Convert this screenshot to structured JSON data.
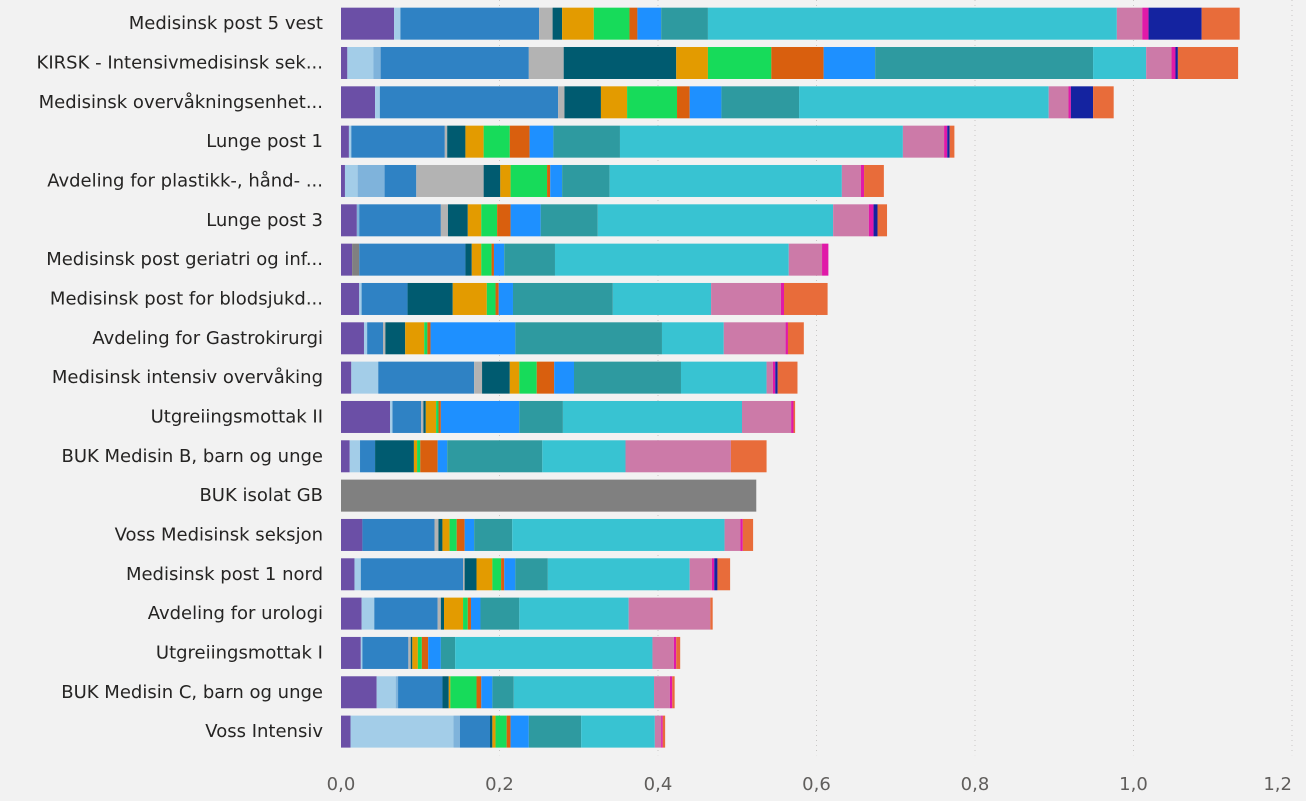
{
  "chart_data": {
    "type": "bar",
    "orientation": "horizontal",
    "stacked": true,
    "xlim": [
      0,
      1.2
    ],
    "x_ticks": [
      "0,0",
      "0,2",
      "0,4",
      "0,6",
      "0,8",
      "1,0",
      "1,2"
    ],
    "grid": "vertical dotted",
    "categories": [
      "Medisinsk post 5 vest",
      "KIRSK - Intensivmedisinsk sek...",
      "Medisinsk overvåkningsenhet...",
      "Lunge post 1",
      "Avdeling for plastikk-, hånd- ...",
      "Lunge post 3",
      "Medisinsk post geriatri og inf...",
      "Medisinsk post for blodsjukd...",
      "Avdeling for Gastrokirurgi",
      "Medisinsk intensiv overvåking",
      "Utgreiingsmottak II",
      "BUK Medisin B, barn og unge",
      "BUK isolat GB",
      "Voss Medisinsk seksjon",
      "Medisinsk post 1 nord",
      "Avdeling for urologi",
      "Utgreiingsmottak I",
      "BUK Medisin C, barn og unge",
      "Voss Intensiv"
    ],
    "series": [
      {
        "color": "#6b4fa6",
        "values": [
          0.067,
          0.008,
          0.043,
          0.01,
          0.005,
          0.02,
          0.014,
          0.023,
          0.029,
          0.013,
          0.062,
          0.011,
          0,
          0.027,
          0.017,
          0.026,
          0.025,
          0.045,
          0.012
        ]
      },
      {
        "color": "#808080",
        "values": [
          0,
          0,
          0,
          0,
          0,
          0,
          0.009,
          0,
          0,
          0,
          0,
          0,
          0.524,
          0,
          0,
          0,
          0,
          0,
          0
        ]
      },
      {
        "color": "#a3cde8",
        "values": [
          0.008,
          0.033,
          0.006,
          0.003,
          0.016,
          0,
          0,
          0.003,
          0.004,
          0.034,
          0.003,
          0.013,
          0,
          0,
          0.008,
          0.016,
          0.002,
          0.024,
          0.13
        ]
      },
      {
        "color": "#7fb3db",
        "values": [
          0,
          0.009,
          0,
          0,
          0.034,
          0.003,
          0,
          0,
          0,
          0,
          0,
          0,
          0,
          0,
          0,
          0,
          0,
          0.003,
          0.008
        ]
      },
      {
        "color": "#2f82c4",
        "values": [
          0.175,
          0.187,
          0.225,
          0.118,
          0.04,
          0.103,
          0.134,
          0.058,
          0.02,
          0.121,
          0.036,
          0.019,
          0,
          0.091,
          0.129,
          0.08,
          0.058,
          0.056,
          0.038
        ]
      },
      {
        "color": "#b3b3b3",
        "values": [
          0.017,
          0.044,
          0.008,
          0.003,
          0.085,
          0.009,
          0,
          0,
          0.003,
          0.01,
          0.003,
          0,
          0,
          0.005,
          0.002,
          0.004,
          0.003,
          0,
          0
        ]
      },
      {
        "color": "#005b70",
        "values": [
          0.012,
          0.142,
          0.046,
          0.023,
          0.021,
          0.025,
          0.008,
          0.057,
          0.025,
          0.035,
          0.003,
          0.049,
          0,
          0.005,
          0.015,
          0.004,
          0.002,
          0.008,
          0.003
        ]
      },
      {
        "color": "#e39b00",
        "values": [
          0.04,
          0.04,
          0.033,
          0.023,
          0.013,
          0.017,
          0.012,
          0.043,
          0.024,
          0.012,
          0.013,
          0.004,
          0,
          0.009,
          0.02,
          0.024,
          0.007,
          0.002,
          0.004
        ]
      },
      {
        "color": "#17db5a",
        "values": [
          0.045,
          0.08,
          0.063,
          0.033,
          0.046,
          0.02,
          0.013,
          0.011,
          0.004,
          0.022,
          0.003,
          0.004,
          0,
          0.009,
          0.011,
          0.006,
          0.005,
          0.033,
          0.014
        ]
      },
      {
        "color": "#d95f0e",
        "values": [
          0.01,
          0.066,
          0.016,
          0.025,
          0.004,
          0.017,
          0.003,
          0.004,
          0.004,
          0.022,
          0.003,
          0.022,
          0,
          0.01,
          0.004,
          0.004,
          0.008,
          0.006,
          0.005
        ]
      },
      {
        "color": "#1e90ff",
        "values": [
          0.03,
          0.065,
          0.04,
          0.03,
          0.015,
          0.038,
          0.013,
          0.018,
          0.107,
          0.025,
          0.099,
          0.012,
          0,
          0.012,
          0.014,
          0.012,
          0.016,
          0.014,
          0.023
        ]
      },
      {
        "color": "#2e9aa0",
        "values": [
          0.059,
          0.275,
          0.098,
          0.084,
          0.06,
          0.072,
          0.064,
          0.126,
          0.185,
          0.135,
          0.055,
          0.12,
          0,
          0.048,
          0.041,
          0.049,
          0.018,
          0.027,
          0.066
        ]
      },
      {
        "color": "#38c3d2",
        "values": [
          0.516,
          0.067,
          0.315,
          0.357,
          0.293,
          0.297,
          0.295,
          0.124,
          0.078,
          0.108,
          0.226,
          0.105,
          0,
          0.268,
          0.179,
          0.138,
          0.249,
          0.177,
          0.093
        ]
      },
      {
        "color": "#cc7aa8",
        "values": [
          0.032,
          0.032,
          0.025,
          0.052,
          0.024,
          0.045,
          0.042,
          0.088,
          0.078,
          0.008,
          0.062,
          0.133,
          0,
          0.02,
          0.028,
          0.103,
          0.027,
          0.02,
          0.008
        ]
      },
      {
        "color": "#e01aa8",
        "values": [
          0.008,
          0.005,
          0.003,
          0.004,
          0.004,
          0.006,
          0.008,
          0.004,
          0.003,
          0.003,
          0.003,
          0,
          0,
          0.003,
          0.003,
          0,
          0.003,
          0.003,
          0.002
        ]
      },
      {
        "color": "#1423a0",
        "values": [
          0.067,
          0.003,
          0.028,
          0.003,
          0,
          0.005,
          0,
          0,
          0,
          0.003,
          0,
          0,
          0,
          0,
          0.004,
          0,
          0,
          0,
          0
        ]
      },
      {
        "color": "#e86c3a",
        "values": [
          0.048,
          0.076,
          0.026,
          0.006,
          0.025,
          0.012,
          0,
          0.055,
          0.02,
          0.025,
          0.002,
          0.045,
          0,
          0.013,
          0.016,
          0.003,
          0.005,
          0.003,
          0.003
        ]
      }
    ]
  }
}
